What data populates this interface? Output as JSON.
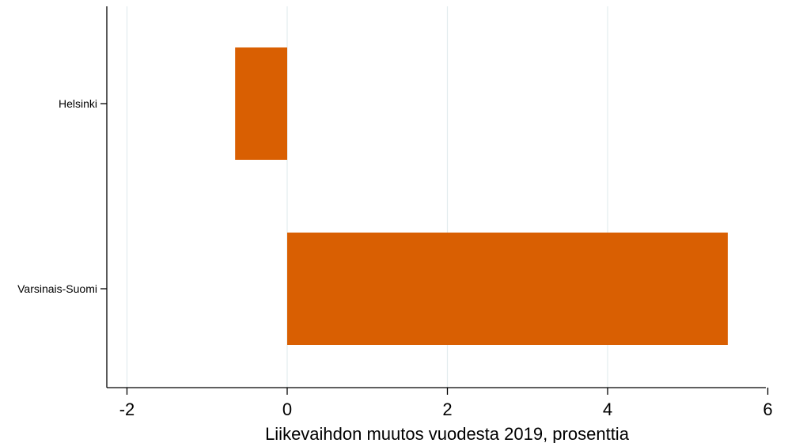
{
  "chart_data": {
    "type": "bar",
    "orientation": "horizontal",
    "categories": [
      "Helsinki",
      "Varsinais-Suomi"
    ],
    "values": [
      -0.65,
      5.5
    ],
    "xlabel": "Liikevaihdon muutos vuodesta 2019, prosenttia",
    "xlim": [
      -2.2,
      6.3
    ],
    "xticks": [
      -2,
      0,
      2,
      4,
      6
    ],
    "x_tick_labels": [
      "-2",
      "0",
      "2",
      "4",
      "6"
    ],
    "grid": "vertical",
    "legend": "none",
    "bar_color": "#d95f02",
    "grid_color": "#e3ecee",
    "axis_color": "#000000"
  }
}
